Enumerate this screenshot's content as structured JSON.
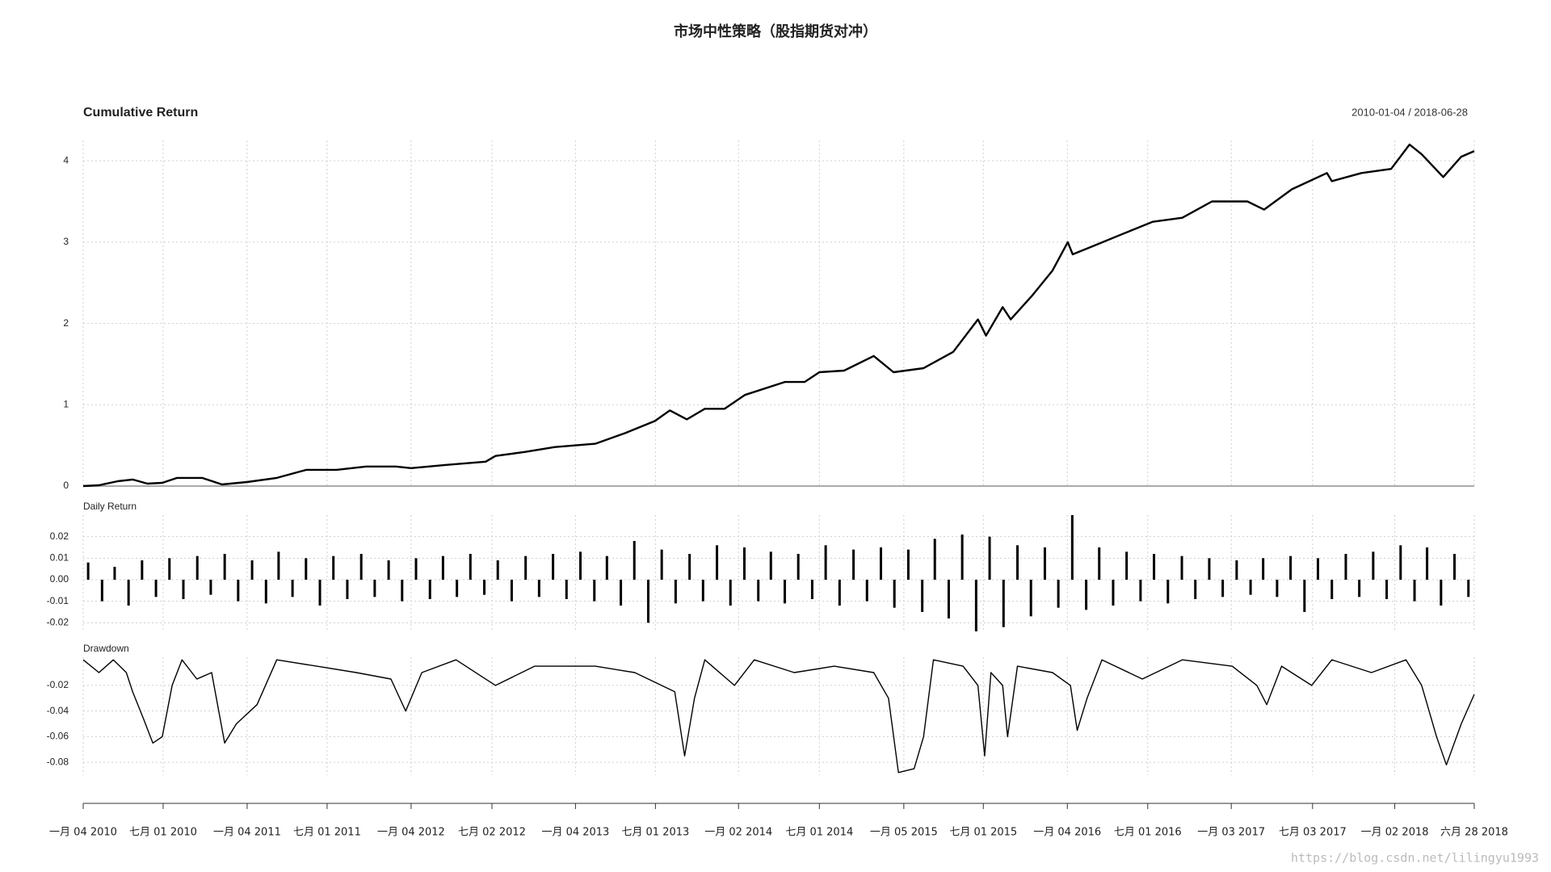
{
  "title": "市场中性策略（股指期货对冲）",
  "watermark": "https://blog.csdn.net/lilingyu1993",
  "chart_data": [
    {
      "type": "line",
      "title": "Cumulative Return",
      "subtitle": "2010-01-04 / 2018-06-28",
      "color": "#000000",
      "xlim": [
        "2010-01-04",
        "2018-06-28"
      ],
      "ylim": [
        0,
        4.25
      ],
      "yticks": [
        0,
        1,
        2,
        3,
        4
      ],
      "grid": true,
      "x": [
        "2010-01-04",
        "2010-02-08",
        "2010-03-22",
        "2010-04-24",
        "2010-05-27",
        "2010-06-29",
        "2010-08-01",
        "2010-09-26",
        "2010-11-09",
        "2011-01-04",
        "2011-03-11",
        "2011-05-16",
        "2011-07-22",
        "2011-09-26",
        "2011-12-01",
        "2012-01-04",
        "2012-03-22",
        "2012-06-18",
        "2012-07-10",
        "2012-09-14",
        "2012-11-19",
        "2013-02-17",
        "2013-04-24",
        "2013-06-30",
        "2013-08-02",
        "2013-09-09",
        "2013-10-19",
        "2013-12-02",
        "2014-01-16",
        "2014-04-15",
        "2014-05-29",
        "2014-07-01",
        "2014-08-25",
        "2014-10-30",
        "2014-12-13",
        "2015-02-18",
        "2015-04-25",
        "2015-06-19",
        "2015-07-07",
        "2015-08-13",
        "2015-08-31",
        "2015-10-19",
        "2015-12-02",
        "2016-01-05",
        "2016-01-16",
        "2016-03-01",
        "2016-05-06",
        "2016-07-12",
        "2016-09-16",
        "2016-11-21",
        "2017-02-08",
        "2017-03-17",
        "2017-05-18",
        "2017-08-04",
        "2017-08-15",
        "2017-10-20",
        "2017-12-25",
        "2018-02-04",
        "2018-03-03",
        "2018-04-20",
        "2018-05-30",
        "2018-06-28"
      ],
      "values": [
        0,
        0.01,
        0.06,
        0.08,
        0.03,
        0.04,
        0.1,
        0.1,
        0.02,
        0.05,
        0.1,
        0.2,
        0.2,
        0.24,
        0.24,
        0.22,
        0.26,
        0.3,
        0.37,
        0.42,
        0.48,
        0.52,
        0.65,
        0.8,
        0.93,
        0.82,
        0.95,
        0.95,
        1.12,
        1.28,
        1.28,
        1.4,
        1.42,
        1.6,
        1.4,
        1.45,
        1.65,
        2.05,
        1.85,
        2.2,
        2.05,
        2.35,
        2.65,
        3.0,
        2.85,
        2.95,
        3.1,
        3.25,
        3.3,
        3.5,
        3.5,
        3.4,
        3.65,
        3.85,
        3.75,
        3.85,
        3.9,
        4.2,
        4.08,
        3.8,
        4.05,
        4.12
      ]
    },
    {
      "type": "bar",
      "title": "Daily Return",
      "color": "#000000",
      "xlim": [
        "2010-01-04",
        "2018-06-28"
      ],
      "ylim": [
        -0.024,
        0.03
      ],
      "yticks": [
        -0.02,
        -0.01,
        {
          "value": 0,
          "label": "0.00"
        },
        0.01,
        0.02
      ],
      "grid": true,
      "x": [
        "2010-01-15",
        "2010-02-15",
        "2010-03-15",
        "2010-04-15",
        "2010-05-15",
        "2010-06-15",
        "2010-07-15",
        "2010-08-15",
        "2010-09-15",
        "2010-10-15",
        "2010-11-15",
        "2010-12-15",
        "2011-01-15",
        "2011-02-15",
        "2011-03-15",
        "2011-04-15",
        "2011-05-15",
        "2011-06-15",
        "2011-07-15",
        "2011-08-15",
        "2011-09-15",
        "2011-10-15",
        "2011-11-15",
        "2011-12-15",
        "2012-01-15",
        "2012-02-15",
        "2012-03-15",
        "2012-04-15",
        "2012-05-15",
        "2012-06-15",
        "2012-07-15",
        "2012-08-15",
        "2012-09-15",
        "2012-10-15",
        "2012-11-15",
        "2012-12-15",
        "2013-01-15",
        "2013-02-15",
        "2013-03-15",
        "2013-04-15",
        "2013-05-15",
        "2013-06-15",
        "2013-07-15",
        "2013-08-15",
        "2013-09-15",
        "2013-10-15",
        "2013-11-15",
        "2013-12-15",
        "2014-01-15",
        "2014-02-15",
        "2014-03-15",
        "2014-04-15",
        "2014-05-15",
        "2014-06-15",
        "2014-07-15",
        "2014-08-15",
        "2014-09-15",
        "2014-10-15",
        "2014-11-15",
        "2014-12-15",
        "2015-01-15",
        "2015-02-15",
        "2015-03-15",
        "2015-04-15",
        "2015-05-15",
        "2015-06-15",
        "2015-07-15",
        "2015-08-15",
        "2015-09-15",
        "2015-10-15",
        "2015-11-15",
        "2015-12-15",
        "2016-01-15",
        "2016-02-15",
        "2016-03-15",
        "2016-04-15",
        "2016-05-15",
        "2016-06-15",
        "2016-07-15",
        "2016-08-15",
        "2016-09-15",
        "2016-10-15",
        "2016-11-15",
        "2016-12-15",
        "2017-01-15",
        "2017-02-15",
        "2017-03-15",
        "2017-04-15",
        "2017-05-15",
        "2017-06-15",
        "2017-07-15",
        "2017-08-15",
        "2017-09-15",
        "2017-10-15",
        "2017-11-15",
        "2017-12-15",
        "2018-01-15",
        "2018-02-15",
        "2018-03-15",
        "2018-04-15",
        "2018-05-15",
        "2018-06-15"
      ],
      "values": [
        0.008,
        -0.01,
        0.006,
        -0.012,
        0.009,
        -0.008,
        0.01,
        -0.009,
        0.011,
        -0.007,
        0.012,
        -0.01,
        0.009,
        -0.011,
        0.013,
        -0.008,
        0.01,
        -0.012,
        0.011,
        -0.009,
        0.012,
        -0.008,
        0.009,
        -0.01,
        0.01,
        -0.009,
        0.011,
        -0.008,
        0.012,
        -0.007,
        0.009,
        -0.01,
        0.011,
        -0.008,
        0.012,
        -0.009,
        0.013,
        -0.01,
        0.011,
        -0.012,
        0.018,
        -0.02,
        0.014,
        -0.011,
        0.012,
        -0.01,
        0.016,
        -0.012,
        0.015,
        -0.01,
        0.013,
        -0.011,
        0.012,
        -0.009,
        0.016,
        -0.012,
        0.014,
        -0.01,
        0.015,
        -0.013,
        0.014,
        -0.015,
        0.019,
        -0.018,
        0.021,
        -0.024,
        0.02,
        -0.022,
        0.016,
        -0.017,
        0.015,
        -0.013,
        0.03,
        -0.014,
        0.015,
        -0.012,
        0.013,
        -0.01,
        0.012,
        -0.011,
        0.011,
        -0.009,
        0.01,
        -0.008,
        0.009,
        -0.007,
        0.01,
        -0.008,
        0.011,
        -0.015,
        0.01,
        -0.009,
        0.012,
        -0.008,
        0.013,
        -0.009,
        0.016,
        -0.01,
        0.015,
        -0.012,
        0.012,
        -0.008
      ]
    },
    {
      "type": "line",
      "title": "Drawdown",
      "color": "#000000",
      "xlim": [
        "2010-01-04",
        "2018-06-28"
      ],
      "ylim": [
        -0.09,
        0.002
      ],
      "yticks": [
        -0.08,
        -0.06,
        -0.04,
        -0.02
      ],
      "grid": true,
      "xticks": [
        {
          "value": "2010-01-04",
          "label": "一月 04 2010"
        },
        {
          "value": "2010-07-01",
          "label": "七月 01 2010"
        },
        {
          "value": "2011-01-04",
          "label": "一月 04 2011"
        },
        {
          "value": "2011-07-01",
          "label": "七月 01 2011"
        },
        {
          "value": "2012-01-04",
          "label": "一月 04 2012"
        },
        {
          "value": "2012-07-02",
          "label": "七月 02 2012"
        },
        {
          "value": "2013-01-04",
          "label": "一月 04 2013"
        },
        {
          "value": "2013-07-01",
          "label": "七月 01 2013"
        },
        {
          "value": "2014-01-02",
          "label": "一月 02 2014"
        },
        {
          "value": "2014-07-01",
          "label": "七月 01 2014"
        },
        {
          "value": "2015-01-05",
          "label": "一月 05 2015"
        },
        {
          "value": "2015-07-01",
          "label": "七月 01 2015"
        },
        {
          "value": "2016-01-04",
          "label": "一月 04 2016"
        },
        {
          "value": "2016-07-01",
          "label": "七月 01 2016"
        },
        {
          "value": "2017-01-03",
          "label": "一月 03 2017"
        },
        {
          "value": "2017-07-03",
          "label": "七月 03 2017"
        },
        {
          "value": "2018-01-02",
          "label": "一月 02 2018"
        },
        {
          "value": "2018-06-28",
          "label": "六月 28 2018"
        }
      ],
      "x": [
        "2010-01-04",
        "2010-02-08",
        "2010-03-12",
        "2010-04-10",
        "2010-04-24",
        "2010-05-17",
        "2010-06-08",
        "2010-06-29",
        "2010-07-21",
        "2010-08-12",
        "2010-09-14",
        "2010-10-17",
        "2010-11-15",
        "2010-12-11",
        "2011-01-26",
        "2011-03-11",
        "2011-06-08",
        "2011-09-04",
        "2011-11-20",
        "2011-12-23",
        "2012-01-28",
        "2012-04-13",
        "2012-07-10",
        "2012-10-05",
        "2013-02-17",
        "2013-05-16",
        "2013-08-13",
        "2013-09-04",
        "2013-09-26",
        "2013-10-19",
        "2013-12-24",
        "2014-02-06",
        "2014-05-06",
        "2014-08-03",
        "2014-10-30",
        "2014-12-02",
        "2014-12-24",
        "2015-01-28",
        "2015-02-18",
        "2015-03-12",
        "2015-05-17",
        "2015-06-19",
        "2015-07-04",
        "2015-07-18",
        "2015-08-13",
        "2015-08-24",
        "2015-09-15",
        "2015-12-02",
        "2016-01-11",
        "2016-01-26",
        "2016-02-17",
        "2016-03-21",
        "2016-06-19",
        "2016-09-16",
        "2017-01-05",
        "2017-03-01",
        "2017-03-23",
        "2017-04-25",
        "2017-07-01",
        "2017-08-15",
        "2017-11-11",
        "2018-01-27",
        "2018-03-03",
        "2018-04-05",
        "2018-04-27",
        "2018-05-30",
        "2018-06-28"
      ],
      "values": [
        0,
        -0.01,
        0,
        -0.01,
        -0.025,
        -0.045,
        -0.065,
        -0.06,
        -0.02,
        0,
        -0.015,
        -0.01,
        -0.065,
        -0.05,
        -0.035,
        0,
        -0.005,
        -0.01,
        -0.015,
        -0.04,
        -0.01,
        0,
        -0.02,
        -0.005,
        -0.005,
        -0.01,
        -0.025,
        -0.075,
        -0.03,
        0,
        -0.02,
        0,
        -0.01,
        -0.005,
        -0.01,
        -0.03,
        -0.088,
        -0.085,
        -0.06,
        0,
        -0.005,
        -0.02,
        -0.075,
        -0.01,
        -0.02,
        -0.06,
        -0.005,
        -0.01,
        -0.02,
        -0.055,
        -0.03,
        0,
        -0.015,
        0,
        -0.005,
        -0.02,
        -0.035,
        -0.005,
        -0.02,
        0,
        -0.01,
        0,
        -0.02,
        -0.06,
        -0.082,
        -0.05,
        -0.027
      ]
    }
  ]
}
